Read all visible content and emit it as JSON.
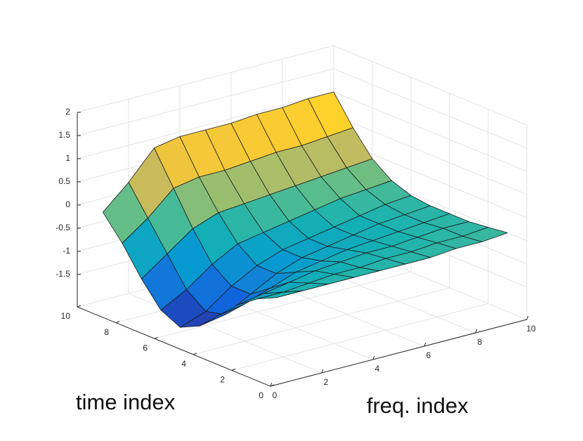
{
  "chart_data": {
    "type": "surface",
    "xlabel": "freq. index",
    "ylabel": "time index",
    "x": [
      1,
      2,
      3,
      4,
      5,
      6,
      7,
      8,
      9,
      10
    ],
    "y": [
      1,
      2,
      3,
      4,
      5,
      6,
      7,
      8,
      9,
      10
    ],
    "z": [
      [
        -0.6,
        -0.6,
        -0.6,
        -0.6,
        -0.6,
        -0.6,
        -0.6,
        -0.55,
        -0.55,
        -0.5
      ],
      [
        -0.8,
        -0.8,
        -0.75,
        -0.7,
        -0.7,
        -0.65,
        -0.65,
        -0.6,
        -0.6,
        -0.55
      ],
      [
        -1.1,
        -1.0,
        -0.9,
        -0.8,
        -0.75,
        -0.7,
        -0.7,
        -0.65,
        -0.6,
        -0.6
      ],
      [
        -1.5,
        -1.4,
        -1.2,
        -1.0,
        -0.9,
        -0.8,
        -0.75,
        -0.7,
        -0.65,
        -0.6
      ],
      [
        -1.9,
        -1.8,
        -1.5,
        -1.2,
        -1.0,
        -0.9,
        -0.8,
        -0.7,
        -0.65,
        -0.6
      ],
      [
        -2.1,
        -1.9,
        -1.5,
        -1.2,
        -1.0,
        -0.9,
        -0.8,
        -0.7,
        -0.6,
        -0.55
      ],
      [
        -1.9,
        -1.6,
        -1.2,
        -0.9,
        -0.8,
        -0.7,
        -0.6,
        -0.5,
        -0.45,
        -0.4
      ],
      [
        -1.4,
        -1.0,
        -0.6,
        -0.4,
        -0.35,
        -0.3,
        -0.25,
        -0.2,
        -0.15,
        -0.1
      ],
      [
        -0.8,
        -0.4,
        0.1,
        0.2,
        0.2,
        0.25,
        0.3,
        0.3,
        0.35,
        0.4
      ],
      [
        -0.3,
        0.2,
        0.8,
        0.9,
        0.9,
        0.9,
        0.95,
        0.95,
        1.0,
        1.0
      ]
    ],
    "colormap": "parula",
    "xlim": [
      0,
      10
    ],
    "xticks": [
      0,
      2,
      4,
      6,
      8,
      10
    ],
    "ylim": [
      0,
      10
    ],
    "yticks": [
      0,
      2,
      4,
      6,
      8,
      10
    ],
    "zlim": [
      -2.2,
      2
    ],
    "zticks": [
      -1.5,
      -1,
      -0.5,
      0,
      0.5,
      1,
      1.5,
      2
    ],
    "grid": true
  }
}
